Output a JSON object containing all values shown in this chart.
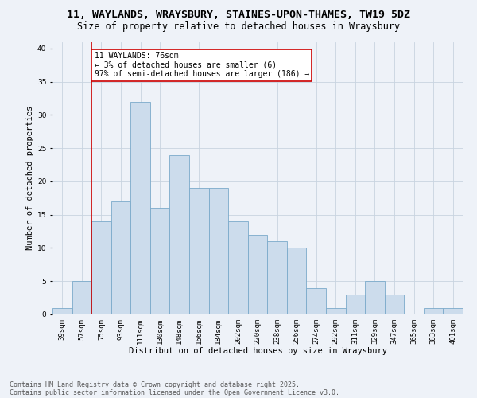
{
  "title_line1": "11, WAYLANDS, WRAYSBURY, STAINES-UPON-THAMES, TW19 5DZ",
  "title_line2": "Size of property relative to detached houses in Wraysbury",
  "xlabel": "Distribution of detached houses by size in Wraysbury",
  "ylabel": "Number of detached properties",
  "categories": [
    "39sqm",
    "57sqm",
    "75sqm",
    "93sqm",
    "111sqm",
    "130sqm",
    "148sqm",
    "166sqm",
    "184sqm",
    "202sqm",
    "220sqm",
    "238sqm",
    "256sqm",
    "274sqm",
    "292sqm",
    "311sqm",
    "329sqm",
    "347sqm",
    "365sqm",
    "383sqm",
    "401sqm"
  ],
  "values": [
    1,
    5,
    14,
    17,
    32,
    16,
    24,
    19,
    19,
    14,
    12,
    11,
    10,
    4,
    1,
    3,
    5,
    3,
    0,
    1,
    1
  ],
  "bar_color": "#ccdcec",
  "bar_edge_color": "#7aaaca",
  "bar_edge_width": 0.6,
  "grid_color": "#c8d4e0",
  "background_color": "#eef2f8",
  "vline_color": "#cc0000",
  "annotation_text": "11 WAYLANDS: 76sqm\n← 3% of detached houses are smaller (6)\n97% of semi-detached houses are larger (186) →",
  "annotation_box_color": "#ffffff",
  "annotation_box_edge": "#cc0000",
  "ylim": [
    0,
    41
  ],
  "yticks": [
    0,
    5,
    10,
    15,
    20,
    25,
    30,
    35,
    40
  ],
  "footer_line1": "Contains HM Land Registry data © Crown copyright and database right 2025.",
  "footer_line2": "Contains public sector information licensed under the Open Government Licence v3.0.",
  "title_fontsize": 9.5,
  "subtitle_fontsize": 8.5,
  "axis_label_fontsize": 7.5,
  "tick_fontsize": 6.5,
  "annotation_fontsize": 7.0,
  "footer_fontsize": 6.0
}
